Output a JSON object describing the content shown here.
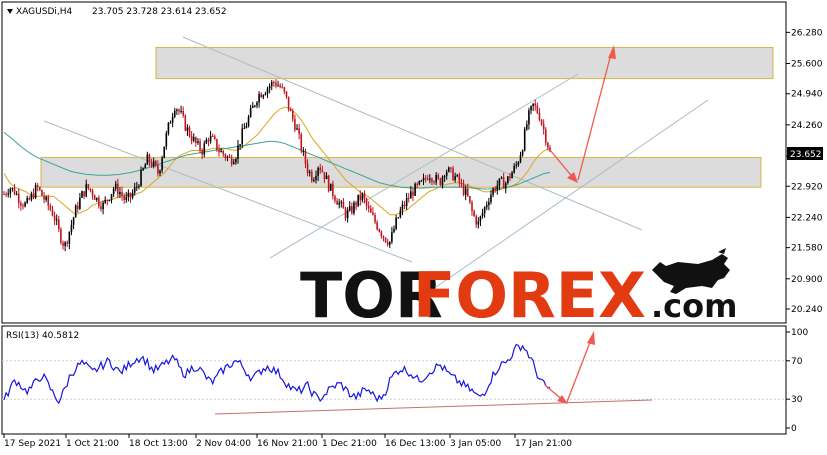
{
  "chart_data": [
    {
      "type": "candlestick",
      "symbol_header": "XAGUSDi,H4",
      "ohlc_readout": "23.705 23.728 23.614 23.652",
      "current_price_label": "23.652",
      "ylim": [
        20.0,
        26.55
      ],
      "yticks": [
        "26.280",
        "25.600",
        "24.940",
        "24.260",
        "23.580",
        "22.920",
        "22.240",
        "21.580",
        "20.900",
        "20.240"
      ],
      "close_series": [
        22.75,
        22.9,
        22.8,
        22.6,
        22.5,
        22.7,
        22.9,
        22.7,
        22.5,
        22.3,
        21.9,
        21.6,
        22.0,
        22.4,
        22.7,
        22.9,
        22.8,
        22.6,
        22.5,
        22.7,
        22.9,
        22.8,
        22.6,
        22.7,
        22.9,
        23.2,
        23.5,
        23.4,
        23.2,
        23.8,
        24.3,
        24.7,
        24.5,
        24.2,
        24.0,
        23.8,
        23.7,
        24.0,
        23.9,
        23.7,
        23.6,
        23.5,
        23.6,
        24.0,
        24.3,
        24.6,
        24.9,
        25.0,
        25.1,
        25.2,
        25.1,
        24.9,
        24.5,
        24.2,
        23.7,
        23.3,
        23.1,
        23.4,
        23.2,
        22.9,
        22.7,
        22.5,
        22.3,
        22.4,
        22.6,
        22.7,
        22.4,
        22.2,
        22.0,
        21.8,
        21.7,
        22.1,
        22.4,
        22.6,
        22.8,
        22.9,
        23.0,
        23.2,
        23.1,
        23.0,
        23.3,
        23.2,
        23.1,
        22.9,
        22.7,
        22.3,
        22.1,
        22.4,
        22.7,
        22.9,
        23.0,
        23.0,
        23.2,
        23.4,
        23.8,
        24.4,
        24.7,
        24.5,
        24.1,
        23.652
      ],
      "moving_averages": [
        {
          "color": "#d9a620",
          "values": [
            23.2,
            23.0,
            22.9,
            22.85,
            22.8,
            22.7,
            22.7,
            22.7,
            22.7,
            22.7,
            22.6,
            22.5,
            22.4,
            22.3,
            22.35,
            22.4,
            22.5,
            22.55,
            22.6,
            22.62,
            22.65,
            22.7,
            22.72,
            22.73,
            22.75,
            22.8,
            22.9,
            23.0,
            23.1,
            23.2,
            23.35,
            23.5,
            23.6,
            23.65,
            23.7,
            23.7,
            23.7,
            23.72,
            23.75,
            23.75,
            23.75,
            23.72,
            23.7,
            23.75,
            23.85,
            23.95,
            24.05,
            24.2,
            24.35,
            24.5,
            24.6,
            24.65,
            24.6,
            24.5,
            24.35,
            24.15,
            23.95,
            23.8,
            23.65,
            23.5,
            23.35,
            23.2,
            23.05,
            22.95,
            22.85,
            22.75,
            22.7,
            22.6,
            22.5,
            22.4,
            22.3,
            22.3,
            22.35,
            22.4,
            22.5,
            22.6,
            22.7,
            22.8,
            22.85,
            22.9,
            22.95,
            22.98,
            23.0,
            22.98,
            22.95,
            22.9,
            22.85,
            22.8,
            22.8,
            22.82,
            22.85,
            22.88,
            22.92,
            22.98,
            23.1,
            23.25,
            23.45,
            23.6,
            23.7,
            23.75
          ]
        },
        {
          "color": "#3aa39a",
          "values": [
            24.1,
            24.0,
            23.9,
            23.8,
            23.7,
            23.62,
            23.55,
            23.5,
            23.45,
            23.4,
            23.35,
            23.3,
            23.25,
            23.22,
            23.2,
            23.18,
            23.17,
            23.16,
            23.16,
            23.16,
            23.17,
            23.18,
            23.2,
            23.22,
            23.25,
            23.28,
            23.32,
            23.36,
            23.4,
            23.44,
            23.48,
            23.52,
            23.56,
            23.6,
            23.62,
            23.64,
            23.66,
            23.68,
            23.7,
            23.72,
            23.74,
            23.76,
            23.78,
            23.8,
            23.82,
            23.84,
            23.86,
            23.88,
            23.9,
            23.9,
            23.88,
            23.85,
            23.8,
            23.75,
            23.7,
            23.65,
            23.6,
            23.55,
            23.5,
            23.45,
            23.4,
            23.35,
            23.3,
            23.25,
            23.2,
            23.15,
            23.1,
            23.05,
            23.0,
            22.97,
            22.94,
            22.92,
            22.9,
            22.89,
            22.88,
            22.88,
            22.88,
            22.89,
            22.9,
            22.9,
            22.9,
            22.9,
            22.9,
            22.9,
            22.89,
            22.88,
            22.87,
            22.86,
            22.86,
            22.87,
            22.88,
            22.9,
            22.92,
            22.95,
            23.0,
            23.05,
            23.1,
            23.15,
            23.2,
            23.22
          ]
        }
      ],
      "support_resistance_zones": [
        [
          25.27,
          25.95
        ],
        [
          22.9,
          23.55
        ]
      ],
      "watermark": "TORFOREX.com"
    },
    {
      "type": "line",
      "indicator_label": "RSI(13) 40.5812",
      "ylim": [
        0,
        100
      ],
      "yticks": [
        "100",
        "70",
        "30",
        "0"
      ],
      "series": [
        {
          "color": "#1515e0",
          "values": [
            28,
            40,
            50,
            45,
            38,
            42,
            50,
            55,
            45,
            35,
            28,
            40,
            55,
            62,
            68,
            64,
            58,
            62,
            66,
            70,
            64,
            58,
            62,
            68,
            72,
            74,
            68,
            60,
            62,
            66,
            70,
            72,
            60,
            56,
            62,
            64,
            58,
            50,
            48,
            56,
            62,
            66,
            70,
            66,
            58,
            52,
            56,
            62,
            64,
            60,
            56,
            48,
            42,
            38,
            40,
            44,
            36,
            30,
            34,
            40,
            44,
            46,
            40,
            34,
            32,
            38,
            40,
            34,
            30,
            36,
            50,
            58,
            62,
            60,
            56,
            50,
            52,
            58,
            62,
            66,
            60,
            54,
            50,
            46,
            42,
            38,
            32,
            36,
            48,
            58,
            66,
            68,
            76,
            84,
            86,
            78,
            66,
            52,
            44,
            40.58
          ]
        }
      ],
      "trendline_level": 30,
      "x_tick_labels": [
        "17 Sep 2021",
        "1 Oct 21:00",
        "18 Oct 13:00",
        "2 Nov 04:00",
        "16 Nov 21:00",
        "1 Dec 21:00",
        "16 Dec 13:00",
        "3 Jan 05:00",
        "17 Jan 21:00"
      ]
    }
  ]
}
